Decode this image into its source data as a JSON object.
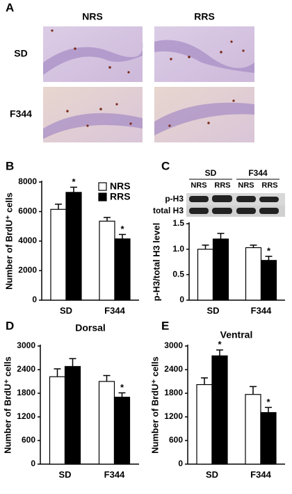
{
  "panel_a": {
    "label": "A",
    "columns": [
      "NRS",
      "RRS"
    ],
    "rows": [
      "SD",
      "F344"
    ]
  },
  "chart_data": [
    {
      "type": "bar",
      "panel_label": "B",
      "y_label": "Number of BrdU⁺ cells",
      "categories": [
        "SD",
        "F344"
      ],
      "series": [
        {
          "name": "NRS",
          "color": "#ffffff",
          "values": [
            6150,
            5350
          ],
          "errors": [
            350,
            250
          ],
          "significance": [
            null,
            null
          ]
        },
        {
          "name": "RRS",
          "color": "#000000",
          "values": [
            7300,
            4150
          ],
          "errors": [
            350,
            300
          ],
          "significance": [
            "*",
            "*"
          ]
        }
      ],
      "ylim": [
        0,
        8000
      ],
      "yticks": [
        0,
        2000,
        4000,
        6000,
        8000
      ],
      "legend": "upper right"
    },
    {
      "type": "bar",
      "panel_label": "C",
      "y_label": "p-H3/total H3 level",
      "blot": {
        "groups": [
          "SD",
          "F344"
        ],
        "lanes": [
          "NRS",
          "RRS",
          "NRS",
          "RRS"
        ],
        "rows": [
          "p-H3",
          "total H3"
        ]
      },
      "categories": [
        "SD",
        "F344"
      ],
      "series": [
        {
          "color": "#ffffff",
          "values": [
            1.0,
            1.03
          ],
          "errors": [
            0.08,
            0.05
          ],
          "significance": [
            null,
            null
          ]
        },
        {
          "color": "#000000",
          "values": [
            1.2,
            0.78
          ],
          "errors": [
            0.11,
            0.08
          ],
          "significance": [
            null,
            "*"
          ]
        }
      ],
      "ylim": [
        0,
        1.5
      ],
      "yticks": [
        0,
        0.5,
        {
          "value": 1,
          "label": "1.0"
        },
        1.5
      ]
    },
    {
      "type": "bar",
      "panel_label": "D",
      "title": "Dorsal",
      "y_label": "Number of BrdU⁺ cells",
      "categories": [
        "SD",
        "F344"
      ],
      "series": [
        {
          "color": "#ffffff",
          "values": [
            2220,
            2100
          ],
          "errors": [
            200,
            150
          ],
          "significance": [
            null,
            null
          ]
        },
        {
          "color": "#000000",
          "values": [
            2480,
            1700
          ],
          "errors": [
            200,
            110
          ],
          "significance": [
            null,
            "*"
          ]
        }
      ],
      "ylim": [
        0,
        3000
      ],
      "yticks": [
        0,
        600,
        1200,
        1800,
        2400,
        3000
      ]
    },
    {
      "type": "bar",
      "panel_label": "E",
      "title": "Ventral",
      "y_label": "Number of BrdU⁺ cells",
      "categories": [
        "SD",
        "F344"
      ],
      "series": [
        {
          "color": "#ffffff",
          "values": [
            2020,
            1770
          ],
          "errors": [
            170,
            200
          ],
          "significance": [
            null,
            null
          ]
        },
        {
          "color": "#000000",
          "values": [
            2750,
            1310
          ],
          "errors": [
            150,
            130
          ],
          "significance": [
            "*",
            "*"
          ]
        }
      ],
      "ylim": [
        0,
        3000
      ],
      "yticks": [
        0,
        600,
        1200,
        1800,
        2400,
        3000
      ]
    }
  ]
}
